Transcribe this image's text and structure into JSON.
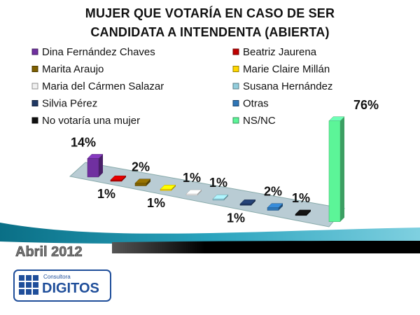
{
  "chart_data": {
    "type": "bar",
    "title": "MUJER QUE VOTARÍA EN CASO DE SER CANDIDATA A INTENDENTA (ABIERTA)",
    "categories": [
      "Dina Fernández Chaves",
      "Beatriz Jaurena",
      "Marita Araujo",
      "Marie Claire Millán",
      "Maria del Cármen Salazar",
      "Susana Hernández",
      "Silvia Pérez",
      "Otras",
      "No votaría una mujer",
      "NS/NC"
    ],
    "values": [
      14,
      1,
      2,
      1,
      1,
      1,
      1,
      2,
      1,
      76
    ],
    "value_labels": [
      "14%",
      "1%",
      "2%",
      "1%",
      "1%",
      "1%",
      "1%",
      "2%",
      "1%",
      "76%"
    ],
    "colors": [
      "#7030a0",
      "#c00000",
      "#7f6000",
      "#ffd700",
      "#f0f0f0",
      "#92cddc",
      "#1f3864",
      "#2e75b6",
      "#111111",
      "#5cf598"
    ],
    "legend": "top"
  },
  "footer": {
    "date": "Abril 2012",
    "logo_caption": "Consultora",
    "logo": "DIGITOS"
  }
}
